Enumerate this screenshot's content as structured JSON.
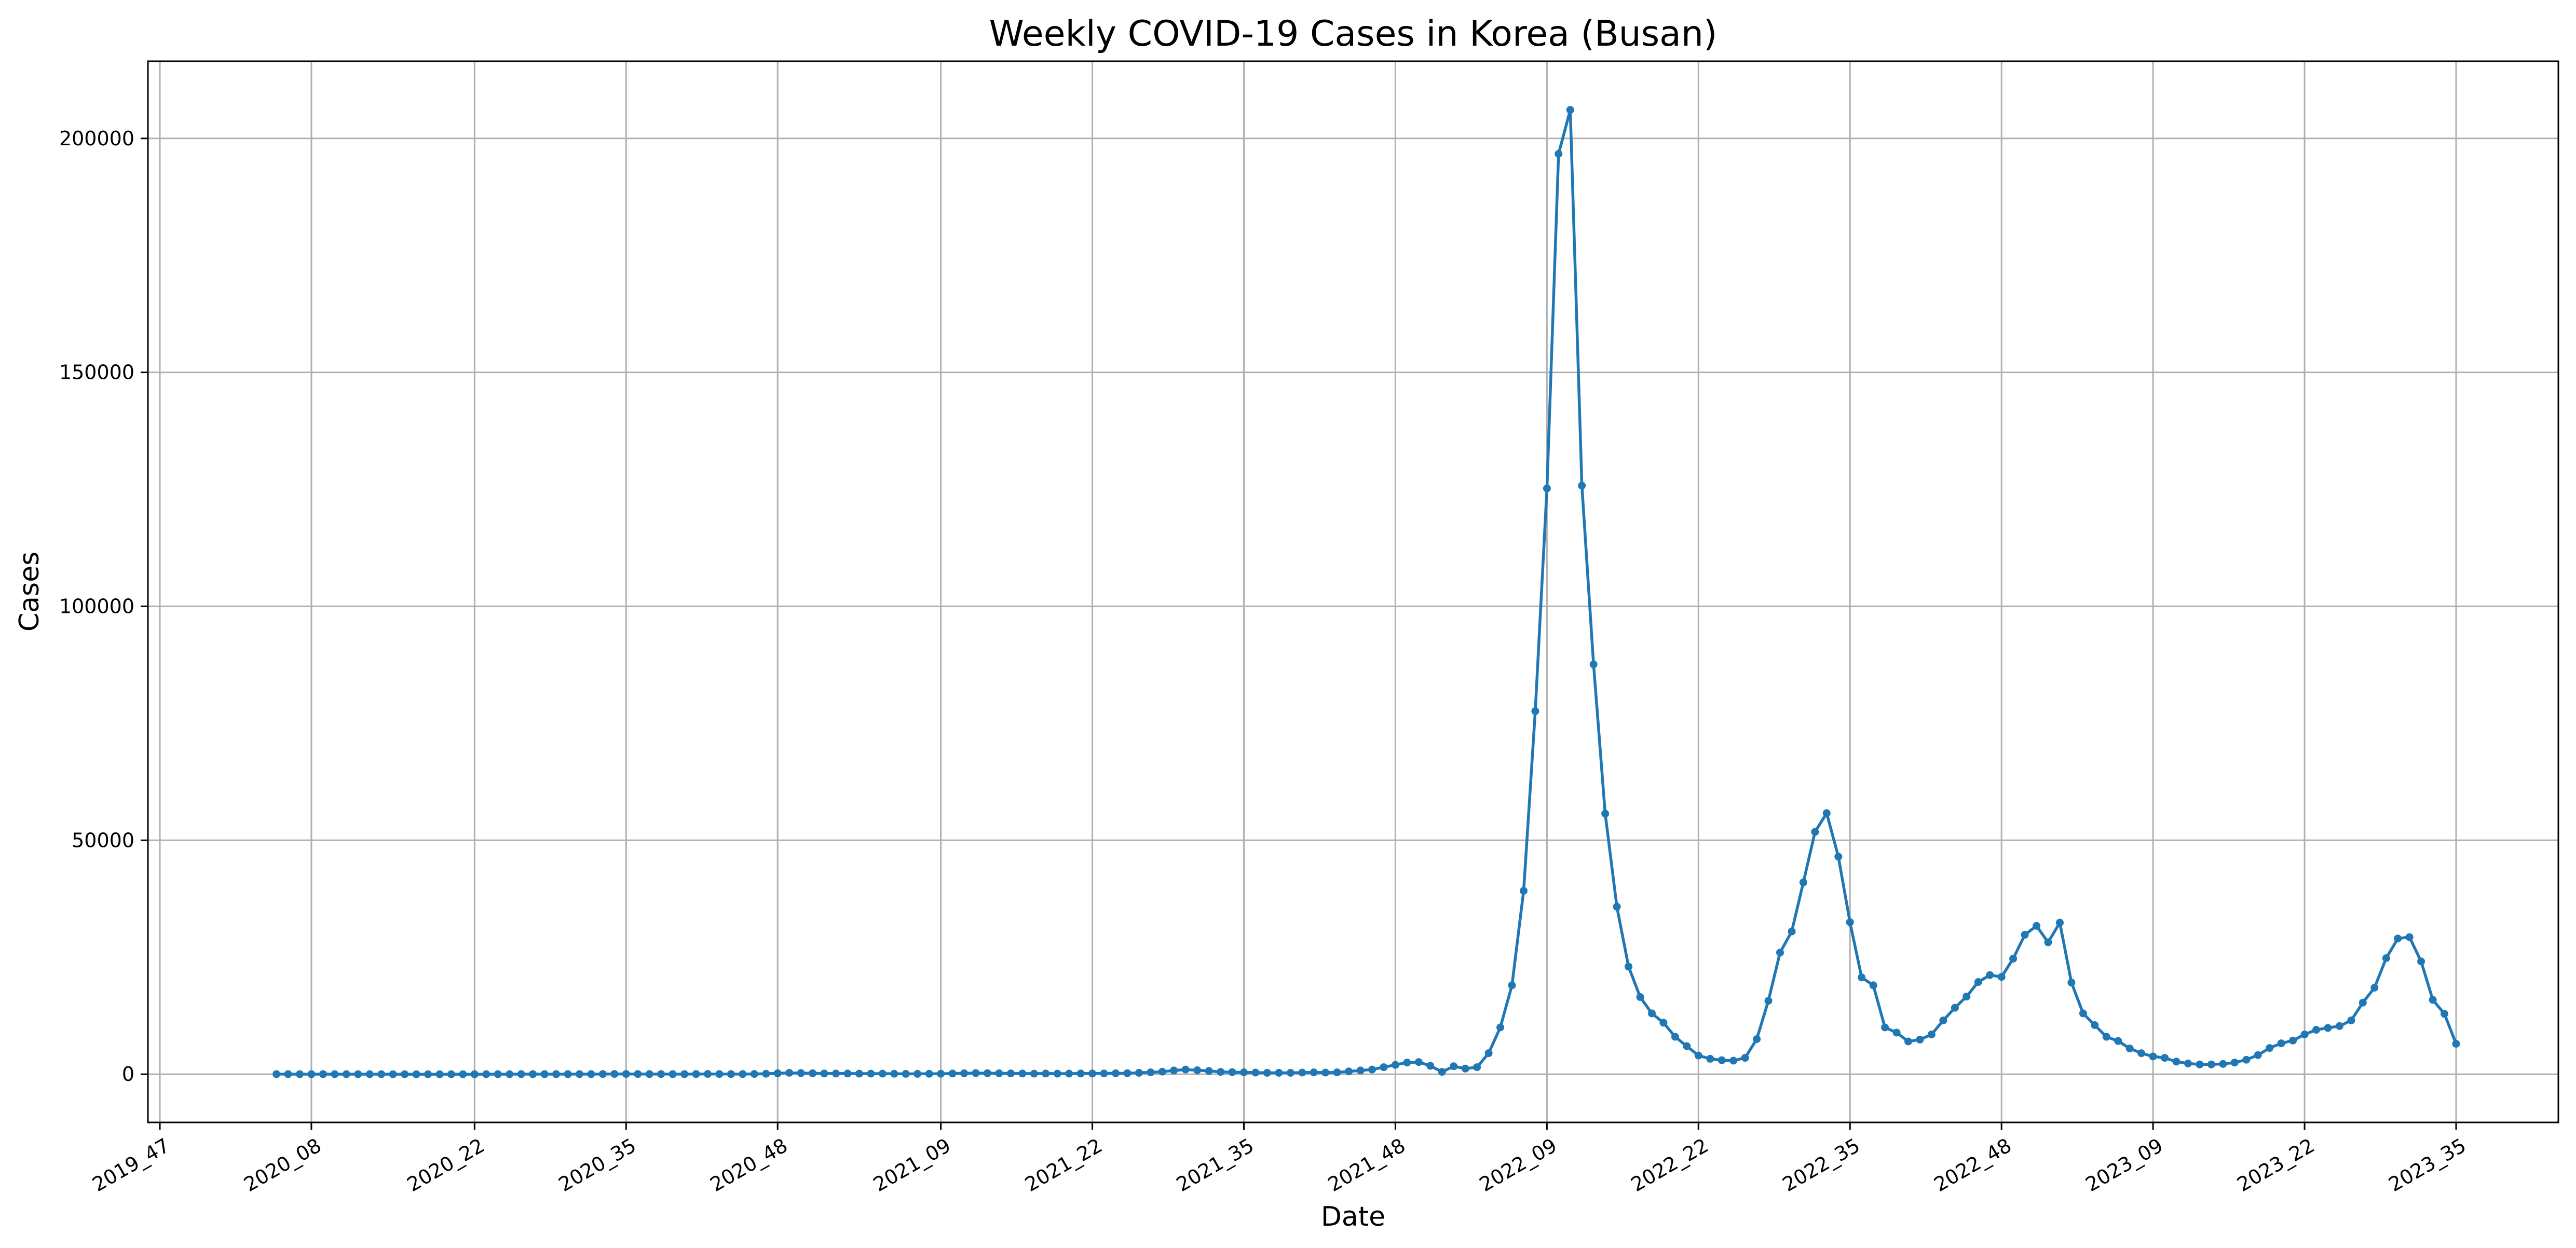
{
  "chart_data": {
    "type": "line",
    "title": "Weekly COVID-19 Cases in Korea (Busan)",
    "xlabel": "Date",
    "ylabel": "Cases",
    "x_tick_labels": [
      "2019_47",
      "2020_08",
      "2020_22",
      "2020_35",
      "2020_48",
      "2021_09",
      "2021_22",
      "2021_35",
      "2021_48",
      "2022_09",
      "2022_22",
      "2022_35",
      "2022_48",
      "2023_09",
      "2023_22",
      "2023_35"
    ],
    "y_ticks": [
      0,
      50000,
      100000,
      150000,
      200000
    ],
    "ylim": [
      -10300,
      216500
    ],
    "grid": true,
    "series": [
      {
        "color": "#1f77b4",
        "marker": "circle",
        "points": [
          [
            "2020_05",
            30
          ],
          [
            "2020_06",
            20
          ],
          [
            "2020_07",
            10
          ],
          [
            "2020_08",
            10
          ],
          [
            "2020_09",
            20
          ],
          [
            "2020_10",
            10
          ],
          [
            "2020_11",
            10
          ],
          [
            "2020_12",
            10
          ],
          [
            "2020_13",
            10
          ],
          [
            "2020_14",
            10
          ],
          [
            "2020_15",
            5
          ],
          [
            "2020_16",
            5
          ],
          [
            "2020_17",
            5
          ],
          [
            "2020_18",
            5
          ],
          [
            "2020_19",
            5
          ],
          [
            "2020_20",
            5
          ],
          [
            "2020_21",
            5
          ],
          [
            "2020_22",
            5
          ],
          [
            "2020_23",
            10
          ],
          [
            "2020_24",
            10
          ],
          [
            "2020_25",
            10
          ],
          [
            "2020_26",
            20
          ],
          [
            "2020_27",
            20
          ],
          [
            "2020_28",
            30
          ],
          [
            "2020_29",
            20
          ],
          [
            "2020_30",
            20
          ],
          [
            "2020_31",
            20
          ],
          [
            "2020_32",
            30
          ],
          [
            "2020_33",
            50
          ],
          [
            "2020_34",
            60
          ],
          [
            "2020_35",
            60
          ],
          [
            "2020_36",
            50
          ],
          [
            "2020_37",
            40
          ],
          [
            "2020_38",
            40
          ],
          [
            "2020_39",
            30
          ],
          [
            "2020_40",
            30
          ],
          [
            "2020_41",
            40
          ],
          [
            "2020_42",
            60
          ],
          [
            "2020_43",
            50
          ],
          [
            "2020_44",
            40
          ],
          [
            "2020_45",
            40
          ],
          [
            "2020_46",
            60
          ],
          [
            "2020_47",
            100
          ],
          [
            "2020_48",
            200
          ],
          [
            "2020_49",
            300
          ],
          [
            "2020_50",
            250
          ],
          [
            "2020_51",
            200
          ],
          [
            "2020_52",
            160
          ],
          [
            "2020_53",
            150
          ],
          [
            "2021_01",
            150
          ],
          [
            "2021_02",
            120
          ],
          [
            "2021_03",
            120
          ],
          [
            "2021_04",
            120
          ],
          [
            "2021_05",
            100
          ],
          [
            "2021_06",
            80
          ],
          [
            "2021_07",
            80
          ],
          [
            "2021_08",
            100
          ],
          [
            "2021_09",
            100
          ],
          [
            "2021_10",
            150
          ],
          [
            "2021_11",
            200
          ],
          [
            "2021_12",
            250
          ],
          [
            "2021_13",
            220
          ],
          [
            "2021_14",
            200
          ],
          [
            "2021_15",
            180
          ],
          [
            "2021_16",
            150
          ],
          [
            "2021_17",
            130
          ],
          [
            "2021_18",
            150
          ],
          [
            "2021_19",
            120
          ],
          [
            "2021_20",
            120
          ],
          [
            "2021_21",
            150
          ],
          [
            "2021_22",
            150
          ],
          [
            "2021_23",
            170
          ],
          [
            "2021_24",
            200
          ],
          [
            "2021_25",
            220
          ],
          [
            "2021_26",
            300
          ],
          [
            "2021_27",
            400
          ],
          [
            "2021_28",
            550
          ],
          [
            "2021_29",
            800
          ],
          [
            "2021_30",
            1000
          ],
          [
            "2021_31",
            850
          ],
          [
            "2021_32",
            700
          ],
          [
            "2021_33",
            500
          ],
          [
            "2021_34",
            450
          ],
          [
            "2021_35",
            400
          ],
          [
            "2021_36",
            350
          ],
          [
            "2021_37",
            300
          ],
          [
            "2021_38",
            300
          ],
          [
            "2021_39",
            300
          ],
          [
            "2021_40",
            350
          ],
          [
            "2021_41",
            400
          ],
          [
            "2021_42",
            350
          ],
          [
            "2021_43",
            400
          ],
          [
            "2021_44",
            600
          ],
          [
            "2021_45",
            800
          ],
          [
            "2021_46",
            1000
          ],
          [
            "2021_47",
            1500
          ],
          [
            "2021_48",
            2000
          ],
          [
            "2021_49",
            2500
          ],
          [
            "2021_50",
            2600
          ],
          [
            "2021_51",
            1800
          ],
          [
            "2021_52",
            500
          ],
          [
            "2022_01",
            1700
          ],
          [
            "2022_02",
            1200
          ],
          [
            "2022_03",
            1500
          ],
          [
            "2022_04",
            4500
          ],
          [
            "2022_05",
            10000
          ],
          [
            "2022_06",
            19000
          ],
          [
            "2022_07",
            39200
          ],
          [
            "2022_08",
            77600
          ],
          [
            "2022_09",
            125200
          ],
          [
            "2022_10",
            196700
          ],
          [
            "2022_11",
            206100
          ],
          [
            "2022_12",
            125800
          ],
          [
            "2022_13",
            87600
          ],
          [
            "2022_14",
            55700
          ],
          [
            "2022_15",
            35800
          ],
          [
            "2022_16",
            23000
          ],
          [
            "2022_17",
            16500
          ],
          [
            "2022_18",
            13000
          ],
          [
            "2022_19",
            11000
          ],
          [
            "2022_20",
            8000
          ],
          [
            "2022_21",
            6000
          ],
          [
            "2022_22",
            4000
          ],
          [
            "2022_23",
            3300
          ],
          [
            "2022_24",
            3000
          ],
          [
            "2022_25",
            2900
          ],
          [
            "2022_26",
            3500
          ],
          [
            "2022_27",
            7500
          ],
          [
            "2022_28",
            15700
          ],
          [
            "2022_29",
            26000
          ],
          [
            "2022_30",
            30500
          ],
          [
            "2022_31",
            41000
          ],
          [
            "2022_32",
            51800
          ],
          [
            "2022_33",
            55800
          ],
          [
            "2022_34",
            46500
          ],
          [
            "2022_35",
            32500
          ],
          [
            "2022_36",
            20700
          ],
          [
            "2022_37",
            19000
          ],
          [
            "2022_38",
            10000
          ],
          [
            "2022_39",
            8900
          ],
          [
            "2022_40",
            7000
          ],
          [
            "2022_41",
            7400
          ],
          [
            "2022_42",
            8500
          ],
          [
            "2022_43",
            11500
          ],
          [
            "2022_44",
            14200
          ],
          [
            "2022_45",
            16600
          ],
          [
            "2022_46",
            19700
          ],
          [
            "2022_47",
            21200
          ],
          [
            "2022_48",
            20800
          ],
          [
            "2022_49",
            24700
          ],
          [
            "2022_50",
            29800
          ],
          [
            "2022_51",
            31700
          ],
          [
            "2022_52",
            28200
          ],
          [
            "2023_01",
            32400
          ],
          [
            "2023_02",
            19600
          ],
          [
            "2023_03",
            13000
          ],
          [
            "2023_04",
            10500
          ],
          [
            "2023_05",
            8000
          ],
          [
            "2023_06",
            7100
          ],
          [
            "2023_07",
            5500
          ],
          [
            "2023_08",
            4500
          ],
          [
            "2023_09",
            3800
          ],
          [
            "2023_10",
            3500
          ],
          [
            "2023_11",
            2700
          ],
          [
            "2023_12",
            2300
          ],
          [
            "2023_13",
            2100
          ],
          [
            "2023_14",
            2100
          ],
          [
            "2023_15",
            2200
          ],
          [
            "2023_16",
            2500
          ],
          [
            "2023_17",
            3100
          ],
          [
            "2023_18",
            4100
          ],
          [
            "2023_19",
            5600
          ],
          [
            "2023_20",
            6600
          ],
          [
            "2023_21",
            7200
          ],
          [
            "2023_22",
            8500
          ],
          [
            "2023_23",
            9500
          ],
          [
            "2023_24",
            9900
          ],
          [
            "2023_25",
            10300
          ],
          [
            "2023_26",
            11500
          ],
          [
            "2023_27",
            15300
          ],
          [
            "2023_28",
            18500
          ],
          [
            "2023_29",
            24800
          ],
          [
            "2023_30",
            29000
          ],
          [
            "2023_31",
            29300
          ],
          [
            "2023_32",
            24100
          ],
          [
            "2023_33",
            15900
          ],
          [
            "2023_34",
            12900
          ],
          [
            "2023_35",
            6500
          ]
        ]
      }
    ]
  }
}
